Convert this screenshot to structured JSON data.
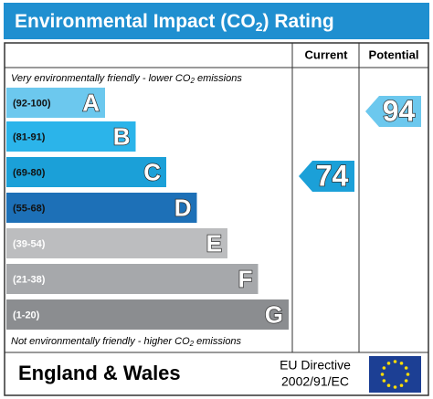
{
  "title": {
    "text": "Environmental Impact (CO",
    "sub": "2",
    "after": ") Rating"
  },
  "columns": {
    "current": "Current",
    "potential": "Potential"
  },
  "top_note": {
    "text": "Very environmentally friendly - lower CO",
    "sub": "2",
    "after": " emissions"
  },
  "bottom_note": {
    "text": "Not environmentally friendly - higher CO",
    "sub": "2",
    "after": " emissions"
  },
  "bands": [
    {
      "range": "(92-100)",
      "letter": "A",
      "color": "#6cc8ee"
    },
    {
      "range": "(81-91)",
      "letter": "B",
      "color": "#2bb4ea"
    },
    {
      "range": "(69-80)",
      "letter": "C",
      "color": "#1ba0d8"
    },
    {
      "range": "(55-68)",
      "letter": "D",
      "color": "#1d70b7"
    },
    {
      "range": "(39-54)",
      "letter": "E",
      "color": "#bcbdbf"
    },
    {
      "range": "(21-38)",
      "letter": "F",
      "color": "#a6a8ab"
    },
    {
      "range": "(1-20)",
      "letter": "G",
      "color": "#8b8d90"
    }
  ],
  "current": {
    "value": 74,
    "color": "#1ba0d8"
  },
  "potential": {
    "value": 94,
    "color": "#6cc8ee"
  },
  "footer": {
    "region": "England & Wales",
    "directive_1": "EU Directive",
    "directive_2": "2002/91/EC"
  }
}
